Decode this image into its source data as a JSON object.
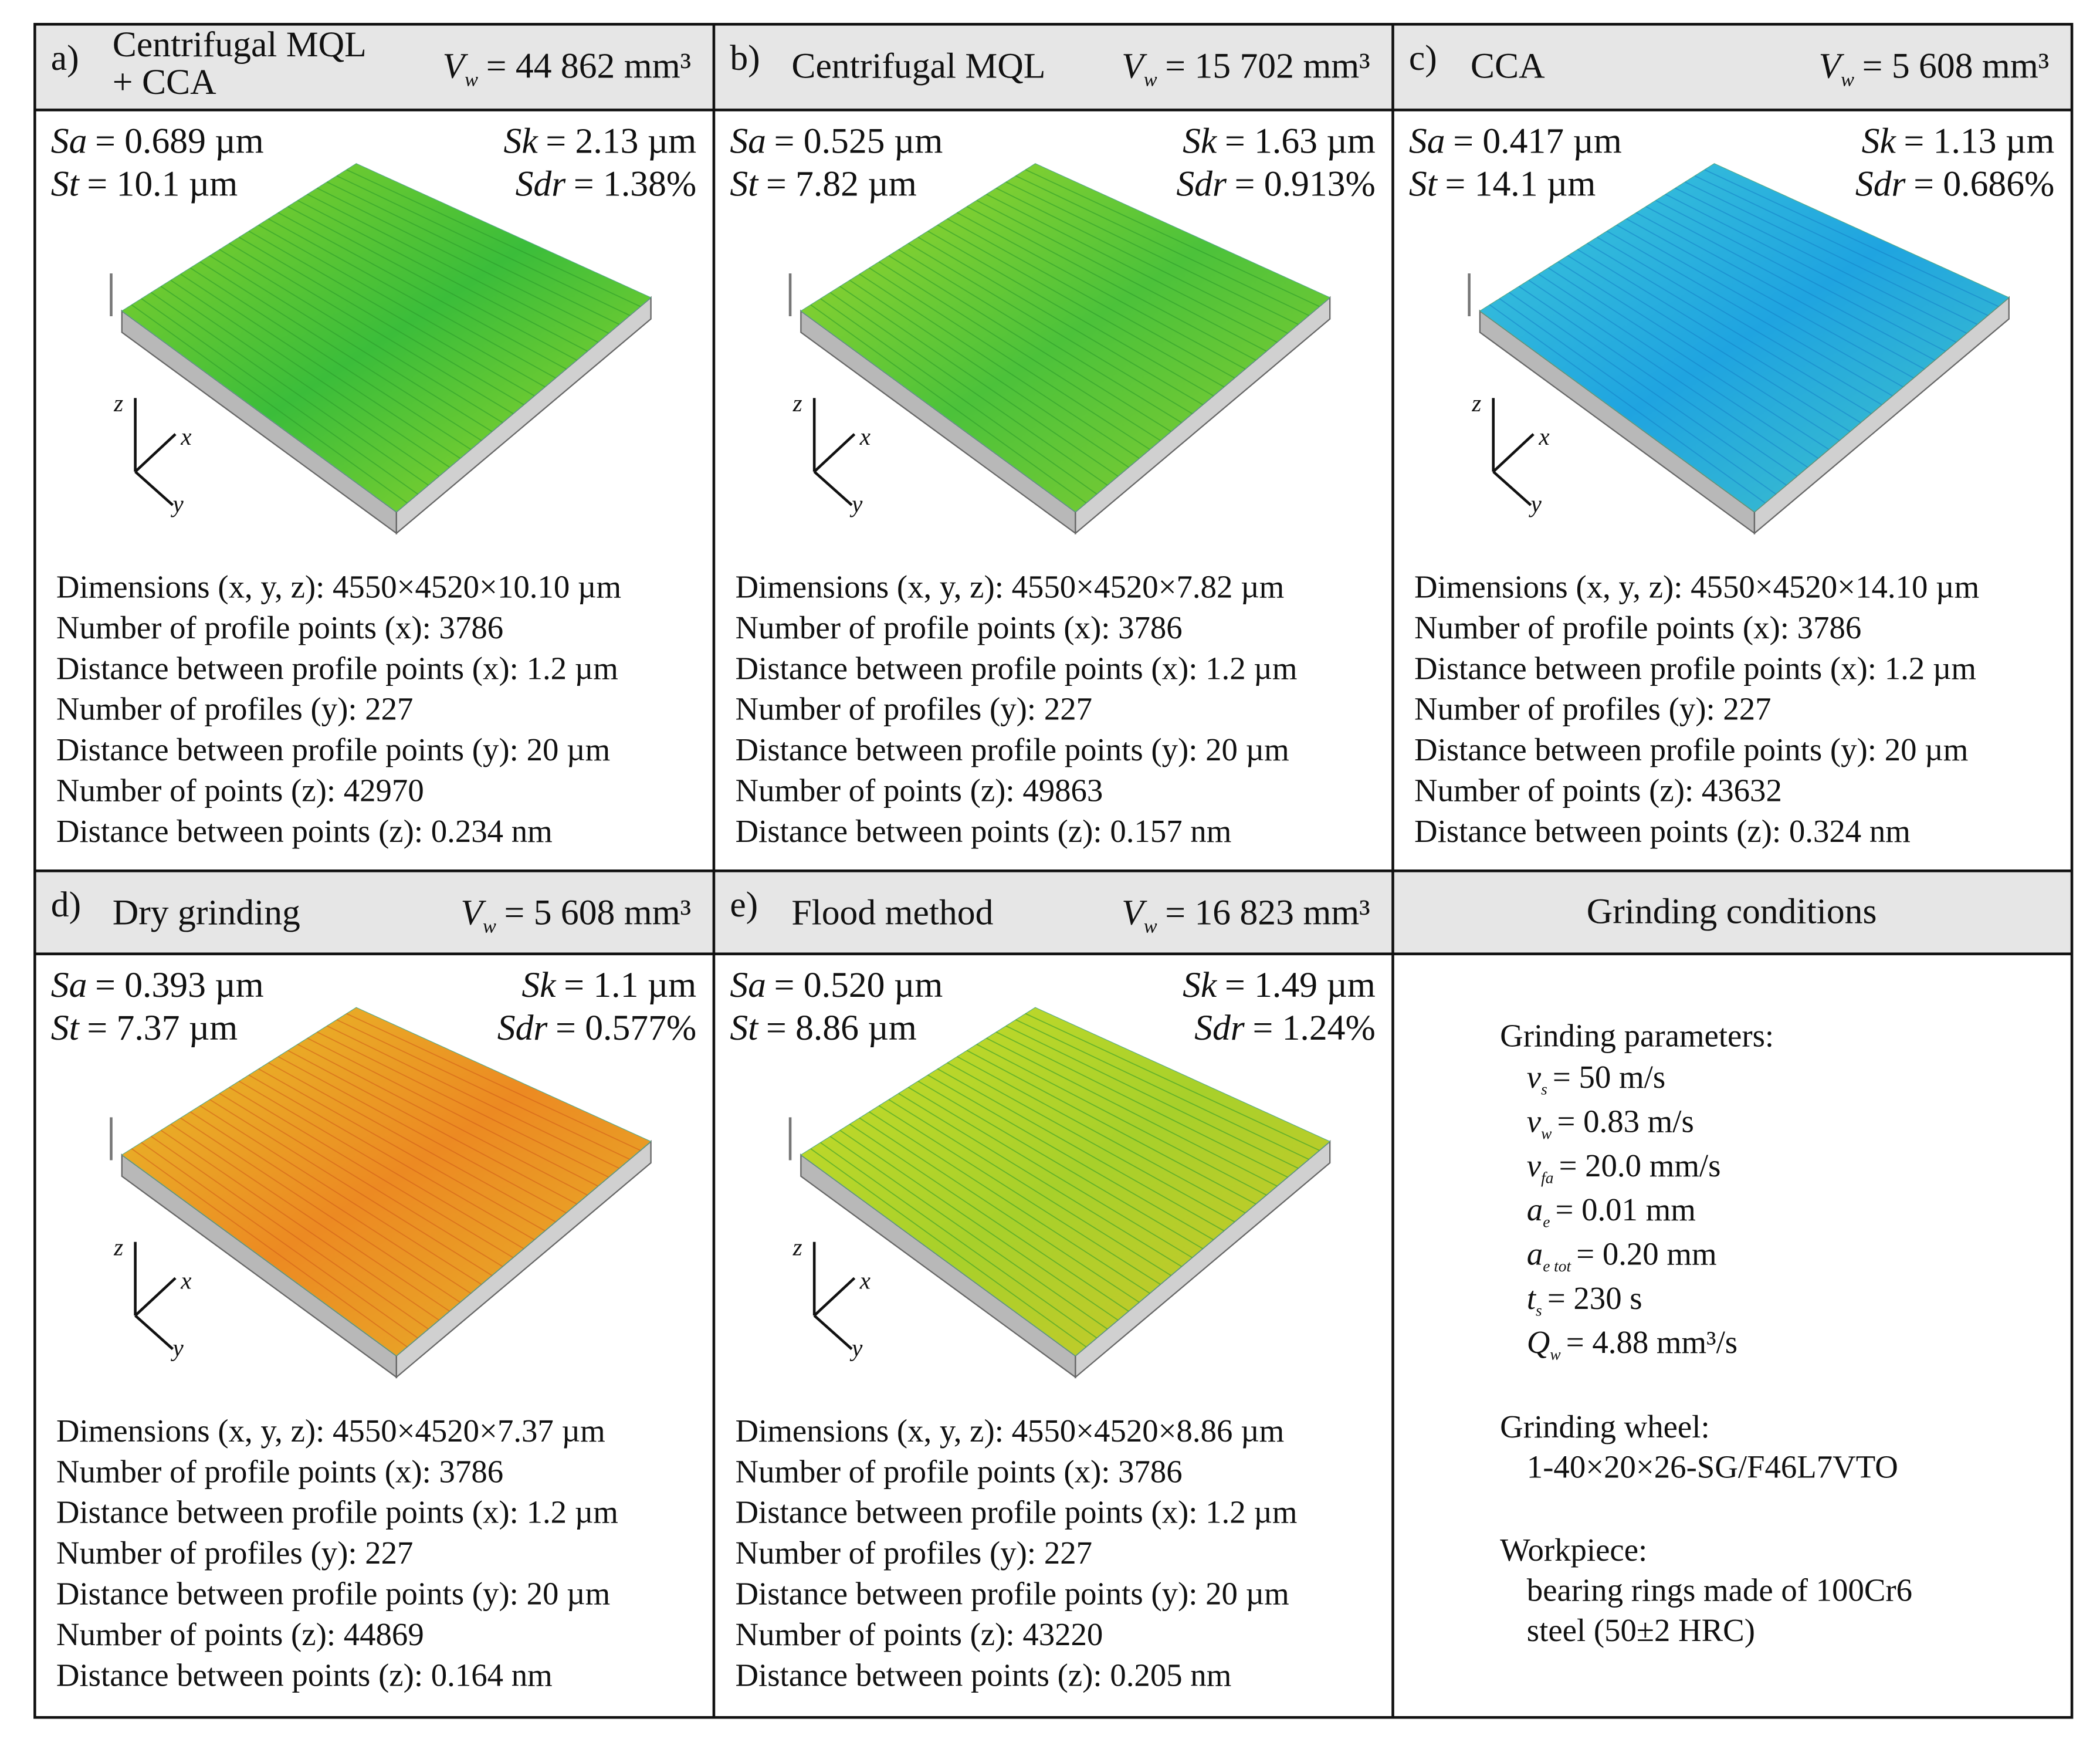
{
  "panels": [
    {
      "label": "a)",
      "title": [
        "Centrifugal MQL",
        "+ CCA"
      ],
      "vw": {
        "symbol": "V",
        "sub": "w",
        "value": "= 44 862 mm³"
      },
      "params": [
        {
          "name": "Sa",
          "value": "= 0.689 µm"
        },
        {
          "name": "Sk",
          "value": "= 2.13 µm"
        },
        {
          "name": "St",
          "value": "= 10.1 µm"
        },
        {
          "name": "Sdr",
          "value": "= 1.38%"
        }
      ],
      "specs": [
        "Dimensions (x, y, z): 4550×4520×10.10 µm",
        "Number of profile points (x): 3786",
        "Distance between profile points (x): 1.2 µm",
        "Number of profiles (y): 227",
        "Distance between profile points (y): 20 µm",
        "Number of points (z): 42970",
        "Distance between points (z): 0.234 nm"
      ]
    },
    {
      "label": "b)",
      "title": [
        "Centrifugal MQL"
      ],
      "vw": {
        "symbol": "V",
        "sub": "w",
        "value": "= 15 702 mm³"
      },
      "params": [
        {
          "name": "Sa",
          "value": "= 0.525 µm"
        },
        {
          "name": "Sk",
          "value": "= 1.63 µm"
        },
        {
          "name": "St",
          "value": "= 7.82 µm"
        },
        {
          "name": "Sdr",
          "value": "= 0.913%"
        }
      ],
      "specs": [
        "Dimensions (x, y, z): 4550×4520×7.82 µm",
        "Number of profile points (x): 3786",
        "Distance between profile points (x): 1.2 µm",
        "Number of profiles (y): 227",
        "Distance between profile points (y): 20 µm",
        "Number of points (z): 49863",
        "Distance between points (z): 0.157 nm"
      ]
    },
    {
      "label": "c)",
      "title": [
        "CCA"
      ],
      "vw": {
        "symbol": "V",
        "sub": "w",
        "value": "= 5 608 mm³"
      },
      "params": [
        {
          "name": "Sa",
          "value": "= 0.417 µm"
        },
        {
          "name": "Sk",
          "value": "= 1.13 µm"
        },
        {
          "name": "St",
          "value": "= 14.1 µm"
        },
        {
          "name": "Sdr",
          "value": "= 0.686%"
        }
      ],
      "specs": [
        "Dimensions (x, y, z): 4550×4520×14.10 µm",
        "Number of profile points (x): 3786",
        "Distance between profile points (x): 1.2 µm",
        "Number of profiles (y): 227",
        "Distance between profile points (y): 20 µm",
        "Number of points (z): 43632",
        "Distance between points (z): 0.324 nm"
      ]
    },
    {
      "label": "d)",
      "title": [
        "Dry grinding"
      ],
      "vw": {
        "symbol": "V",
        "sub": "w",
        "value": "= 5 608 mm³"
      },
      "params": [
        {
          "name": "Sa",
          "value": "= 0.393 µm"
        },
        {
          "name": "Sk",
          "value": "= 1.1 µm"
        },
        {
          "name": "St",
          "value": "= 7.37 µm"
        },
        {
          "name": "Sdr",
          "value": "= 0.577%"
        }
      ],
      "specs": [
        "Dimensions (x, y, z): 4550×4520×7.37 µm",
        "Number of profile points (x): 3786",
        "Distance between profile points (x): 1.2 µm",
        "Number of profiles (y): 227",
        "Distance between profile points (y): 20 µm",
        "Number of points (z): 44869",
        "Distance between points (z): 0.164 nm"
      ]
    },
    {
      "label": "e)",
      "title": [
        "Flood method"
      ],
      "vw": {
        "symbol": "V",
        "sub": "w",
        "value": "= 16 823 mm³"
      },
      "params": [
        {
          "name": "Sa",
          "value": "= 0.520 µm"
        },
        {
          "name": "Sk",
          "value": "= 1.49 µm"
        },
        {
          "name": "St",
          "value": "= 8.86 µm"
        },
        {
          "name": "Sdr",
          "value": "= 1.24%"
        }
      ],
      "specs": [
        "Dimensions (x, y, z): 4550×4520×8.86 µm",
        "Number of profile points (x): 3786",
        "Distance between profile points (x): 1.2 µm",
        "Number of profiles (y): 227",
        "Distance between profile points (y): 20 µm",
        "Number of points (z): 43220",
        "Distance between points (z): 0.205 nm"
      ]
    }
  ],
  "axis_labels": [
    "z",
    "x",
    "y"
  ],
  "conditions": {
    "title": "Grinding conditions",
    "parameters_heading": "Grinding parameters:",
    "parameters": [
      {
        "symbol": "v",
        "sub": "s",
        "value": "= 50 m/s"
      },
      {
        "symbol": "v",
        "sub": "w",
        "value": "= 0.83 m/s"
      },
      {
        "symbol": "v",
        "sub": "fa",
        "value": "= 20.0 mm/s"
      },
      {
        "symbol": "a",
        "sub": "e",
        "value": "= 0.01 mm"
      },
      {
        "symbol": "a",
        "sub": "e tot",
        "value": "= 0.20 mm"
      },
      {
        "symbol": "t",
        "sub": "s",
        "value": "= 230 s"
      },
      {
        "symbol": "Q",
        "sub": "w",
        "value": "= 4.88 mm³/s"
      }
    ],
    "wheel_heading": "Grinding wheel:",
    "wheel": "1-40×20×26-SG/F46L7VTO",
    "workpiece_heading": "Workpiece:",
    "workpiece": [
      "bearing rings made of 100Cr6",
      "steel (50±2 HRC)"
    ]
  }
}
